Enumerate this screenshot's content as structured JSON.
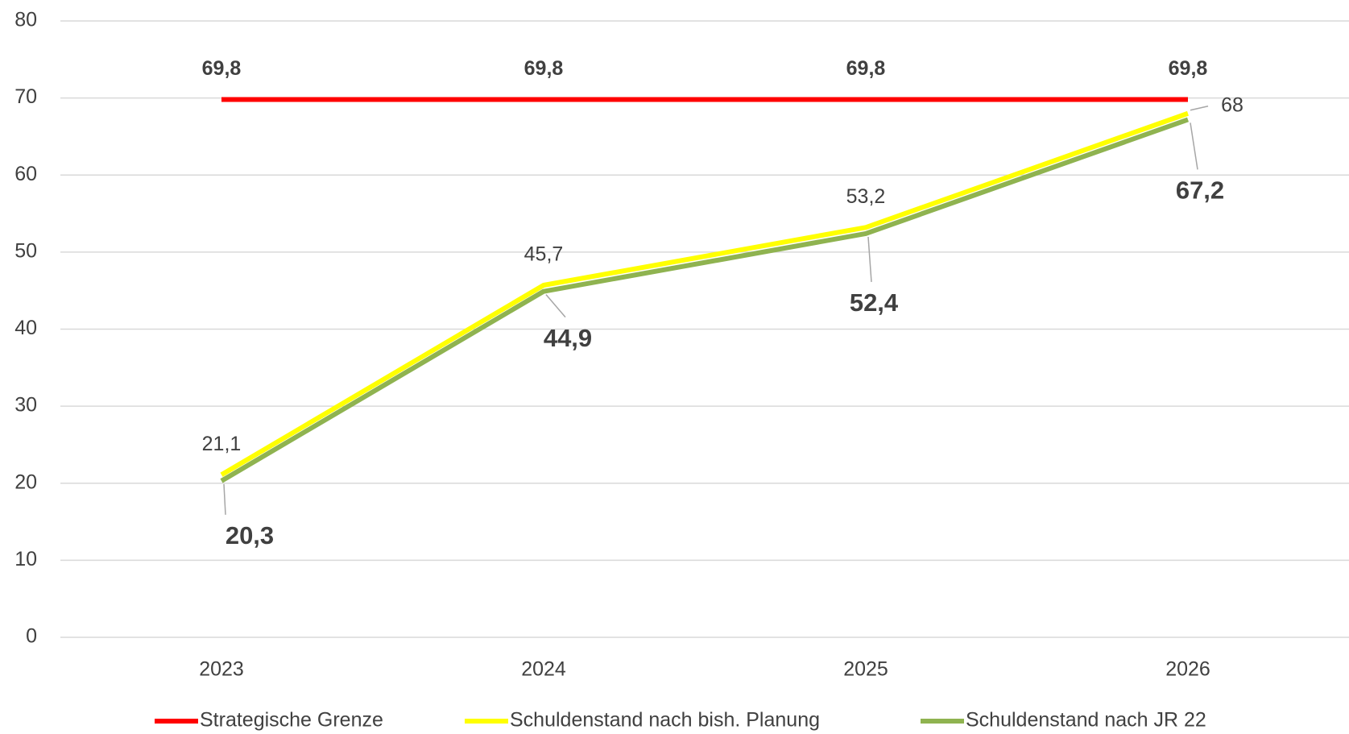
{
  "chart_data": {
    "type": "line",
    "categories": [
      "2023",
      "2024",
      "2025",
      "2026"
    ],
    "series": [
      {
        "name": "Strategische Grenze",
        "color": "#ff0000",
        "values": [
          69.8,
          69.8,
          69.8,
          69.8
        ],
        "value_labels": [
          "69,8",
          "69,8",
          "69,8",
          "69,8"
        ]
      },
      {
        "name": "Schuldenstand nach bish. Planung",
        "color": "#ffff00",
        "values": [
          21.1,
          45.7,
          53.2,
          68
        ],
        "value_labels": [
          "21,1",
          "45,7",
          "53,2",
          "68"
        ]
      },
      {
        "name": "Schuldenstand nach JR 22",
        "color": "#8fb350",
        "values": [
          20.3,
          44.9,
          52.4,
          67.2
        ],
        "value_labels": [
          "20,3",
          "44,9",
          "52,4",
          "67,2"
        ]
      }
    ],
    "ylim": [
      0,
      80
    ],
    "yticks": [
      0,
      10,
      20,
      30,
      40,
      50,
      60,
      70,
      80
    ],
    "grid": true
  }
}
